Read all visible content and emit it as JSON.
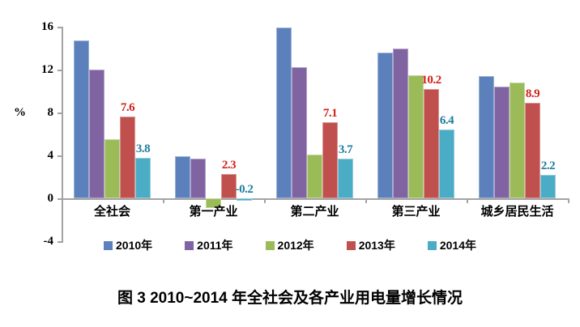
{
  "figure": {
    "caption": "图 3  2010~2014 年全社会及各产业用电量增长情况"
  },
  "chart_data": {
    "type": "bar",
    "title": "",
    "xlabel": "",
    "ylabel": "%",
    "ylim": [
      -4,
      16
    ],
    "yticks": [
      16,
      12,
      8,
      4,
      0,
      -4
    ],
    "grid": false,
    "legend_position": "bottom",
    "categories": [
      "全社会",
      "第一产业",
      "第二产业",
      "第三产业",
      "城乡居民生活"
    ],
    "series": [
      {
        "name": "2010年",
        "color": "#5B80BB",
        "values": [
          14.7,
          3.9,
          15.9,
          13.6,
          11.4
        ],
        "labels": [
          null,
          null,
          null,
          null,
          null
        ],
        "label_color": "#000000"
      },
      {
        "name": "2011年",
        "color": "#8064A2",
        "values": [
          12.0,
          3.7,
          12.2,
          14.0,
          10.4
        ],
        "labels": [
          null,
          null,
          null,
          null,
          null
        ],
        "label_color": "#000000"
      },
      {
        "name": "2012年",
        "color": "#9BBB59",
        "values": [
          5.5,
          -0.9,
          4.1,
          11.5,
          10.8
        ],
        "labels": [
          null,
          null,
          null,
          null,
          null
        ],
        "label_color": "#000000"
      },
      {
        "name": "2013年",
        "color": "#C0504D",
        "values": [
          7.6,
          2.3,
          7.1,
          10.2,
          8.9
        ],
        "labels": [
          "7.6",
          "2.3",
          "7.1",
          "10.2",
          "8.9"
        ],
        "label_color": "#D2211A"
      },
      {
        "name": "2014年",
        "color": "#4BACC6",
        "values": [
          3.8,
          -0.2,
          3.7,
          6.4,
          2.2
        ],
        "labels": [
          "3.8",
          "-0.2",
          "3.7",
          "6.4",
          "2.2"
        ],
        "label_color": "#1C7D9E"
      }
    ]
  }
}
